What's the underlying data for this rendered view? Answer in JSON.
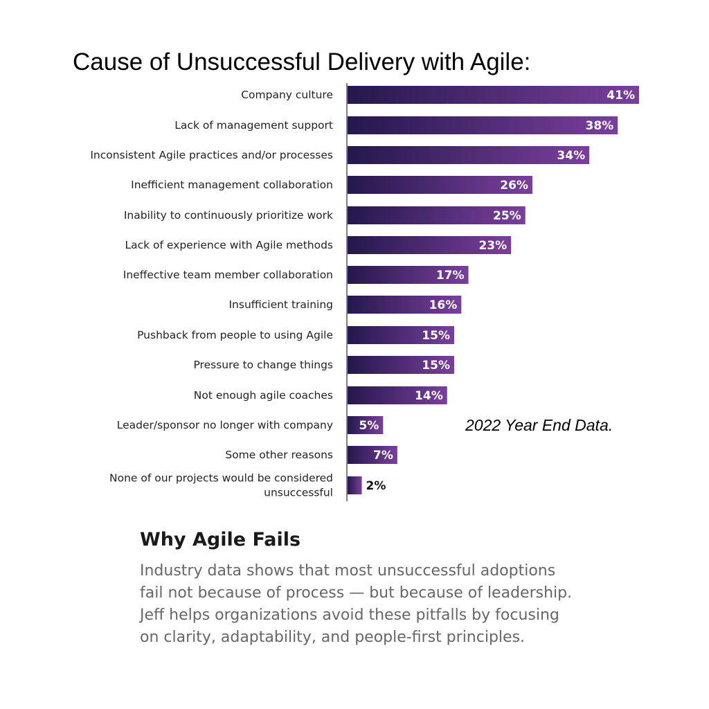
{
  "header": {
    "title": "Cause of Unsuccessful Delivery with Agile:"
  },
  "note": {
    "text": "2022 Year End Data."
  },
  "colors": {
    "bar_start": "#24184c",
    "bar_end": "#7a3f9c",
    "axis": "#5a4a6e",
    "label": "#222222",
    "value_inside": "#ffffff",
    "value_outside": "#111111"
  },
  "chart_data": {
    "type": "bar",
    "orientation": "horizontal",
    "title": "Cause of Unsuccessful Delivery with Agile:",
    "categories": [
      [
        "Company culture"
      ],
      [
        "Lack of management support"
      ],
      [
        "Inconsistent Agile practices and/or processes"
      ],
      [
        "Inefficient management collaboration"
      ],
      [
        "Inability to continuously prioritize work"
      ],
      [
        "Lack of experience with Agile methods"
      ],
      [
        "Ineffective team member collaboration"
      ],
      [
        "Insufficient training"
      ],
      [
        "Pushback from people to using Agile"
      ],
      [
        "Pressure to change things"
      ],
      [
        "Not enough agile coaches"
      ],
      [
        "Leader/sponsor no longer with company"
      ],
      [
        "Some other reasons"
      ],
      [
        "None of our projects would be considered",
        "unsuccessful"
      ]
    ],
    "values": [
      41,
      38,
      34,
      26,
      25,
      23,
      17,
      16,
      15,
      15,
      14,
      5,
      7,
      2
    ],
    "value_labels": [
      "41%",
      "38%",
      "34%",
      "26%",
      "25%",
      "23%",
      "17%",
      "16%",
      "15%",
      "15%",
      "14%",
      "5%",
      "7%",
      "2%"
    ],
    "unit": "%",
    "xlim": [
      0,
      41
    ],
    "grid": false,
    "legend": "none"
  },
  "why": {
    "title": "Why Agile Fails",
    "lines": [
      "Industry data shows that most unsuccessful adoptions",
      "fail not because of process — but because of leadership.",
      "Jeff helps organizations avoid these pitfalls by focusing",
      "on clarity, adaptability, and people-first principles."
    ]
  }
}
